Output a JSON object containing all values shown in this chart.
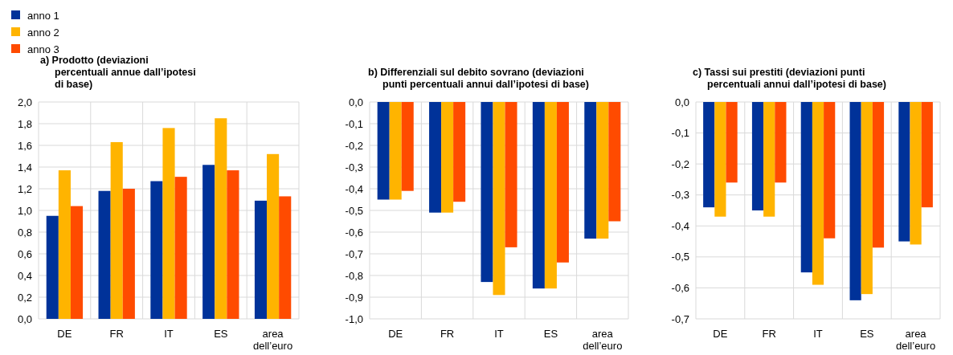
{
  "chart_data": [
    {
      "type": "bar",
      "title": "a) Prodotto (deviazioni percentuali annue dall’ipotesi di base)",
      "categories": [
        "DE",
        "FR",
        "IT",
        "ES",
        "area dell’euro"
      ],
      "series": [
        {
          "name": "anno 1",
          "color": "#003299",
          "values": [
            0.95,
            1.18,
            1.27,
            1.42,
            1.09
          ]
        },
        {
          "name": "anno 2",
          "color": "#ffb400",
          "values": [
            1.37,
            1.63,
            1.76,
            1.85,
            1.52
          ]
        },
        {
          "name": "anno 3",
          "color": "#ff4b00",
          "values": [
            1.04,
            1.2,
            1.31,
            1.37,
            1.13
          ]
        }
      ],
      "ylim": [
        0,
        2
      ],
      "yticks": [
        {
          "value": 0,
          "label": "0,0"
        },
        {
          "value": 0.2,
          "label": "0,2"
        },
        {
          "value": 0.4,
          "label": "0,4"
        },
        {
          "value": 0.6,
          "label": "0,6"
        },
        {
          "value": 0.8,
          "label": "0,8"
        },
        {
          "value": 1,
          "label": "1,0"
        },
        {
          "value": 1.2,
          "label": "1,2"
        },
        {
          "value": 1.4,
          "label": "1,4"
        },
        {
          "value": 1.6,
          "label": "1,6"
        },
        {
          "value": 1.8,
          "label": "1,8"
        },
        {
          "value": 2,
          "label": "2,0"
        }
      ],
      "grid": true,
      "legend": "top left"
    },
    {
      "type": "bar",
      "title": "b) Differenziali sul debito sovrano (deviazioni punti percentuali annui dall’ipotesi di base)",
      "categories": [
        "DE",
        "FR",
        "IT",
        "ES",
        "area dell’euro"
      ],
      "series": [
        {
          "color": "#003299",
          "values": [
            -0.45,
            -0.51,
            -0.83,
            -0.86,
            -0.63
          ]
        },
        {
          "color": "#ffb400",
          "values": [
            -0.45,
            -0.51,
            -0.89,
            -0.86,
            -0.63
          ]
        },
        {
          "color": "#ff4b00",
          "values": [
            -0.41,
            -0.46,
            -0.67,
            -0.74,
            -0.55
          ]
        }
      ],
      "ylim": [
        -1,
        0
      ],
      "yticks": [
        {
          "value": 0,
          "label": "0,0"
        },
        {
          "value": -0.1,
          "label": "-0,1"
        },
        {
          "value": -0.2,
          "label": "-0,2"
        },
        {
          "value": -0.3,
          "label": "-0,3"
        },
        {
          "value": -0.4,
          "label": "-0,4"
        },
        {
          "value": -0.5,
          "label": "-0,5"
        },
        {
          "value": -0.6,
          "label": "-0,6"
        },
        {
          "value": -0.7,
          "label": "-0,7"
        },
        {
          "value": -0.8,
          "label": "-0,8"
        },
        {
          "value": -0.9,
          "label": "-0,9"
        },
        {
          "value": -1,
          "label": "-1,0"
        }
      ],
      "grid": true
    },
    {
      "type": "bar",
      "title": "c) Tassi sui prestiti (deviazioni punti percentuali annui dall’ipotesi di base)",
      "categories": [
        "DE",
        "FR",
        "IT",
        "ES",
        "area dell’euro"
      ],
      "series": [
        {
          "color": "#003299",
          "values": [
            -0.34,
            -0.35,
            -0.55,
            -0.64,
            -0.45
          ]
        },
        {
          "color": "#ffb400",
          "values": [
            -0.37,
            -0.37,
            -0.59,
            -0.62,
            -0.46
          ]
        },
        {
          "color": "#ff4b00",
          "values": [
            -0.26,
            -0.26,
            -0.44,
            -0.47,
            -0.34
          ]
        }
      ],
      "ylim": [
        -0.7,
        0
      ],
      "yticks": [
        {
          "value": 0,
          "label": "0,0"
        },
        {
          "value": -0.1,
          "label": "-0,1"
        },
        {
          "value": -0.2,
          "label": "-0,2"
        },
        {
          "value": -0.3,
          "label": "-0,3"
        },
        {
          "value": -0.4,
          "label": "-0,4"
        },
        {
          "value": -0.5,
          "label": "-0,5"
        },
        {
          "value": -0.6,
          "label": "-0,6"
        },
        {
          "value": -0.7,
          "label": "-0,7"
        }
      ],
      "grid": true
    }
  ]
}
